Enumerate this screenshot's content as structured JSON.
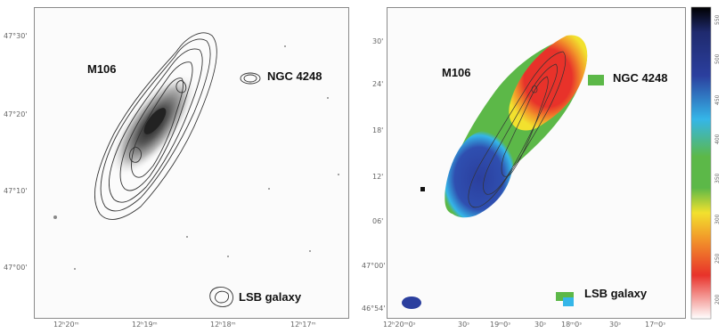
{
  "left_panel": {
    "labels": {
      "m106": "M106",
      "ngc": "NGC 4248",
      "lsb": "LSB galaxy"
    },
    "y_ticks": [
      "47°30'",
      "47°20'",
      "47°10'",
      "47°00'"
    ],
    "x_ticks": [
      "12ʰ20ᵐ",
      "12ʰ19ᵐ",
      "12ʰ18ᵐ",
      "12ʰ17ᵐ"
    ]
  },
  "right_panel": {
    "labels": {
      "m106": "M106",
      "ngc": "NGC 4248",
      "lsb": "LSB galaxy"
    },
    "y_ticks": [
      "30'",
      "24'",
      "18'",
      "12'",
      "06'",
      "47°00'",
      "46°54'"
    ],
    "x_ticks": [
      "12ʰ20ᵐ0ˢ",
      "30ˢ",
      "19ᵐ0ˢ",
      "30ˢ",
      "18ᵐ0ˢ",
      "30ˢ",
      "17ᵐ0ˢ"
    ]
  },
  "colorbar": {
    "labels": [
      "550",
      "500",
      "450",
      "400",
      "350",
      "300",
      "250",
      "200"
    ]
  },
  "colors": {
    "blue": "#2b3f9e",
    "cyan": "#35b6e8",
    "green": "#5cb848",
    "yellow": "#f2e12e",
    "orange": "#f29a2a",
    "red": "#e8322a"
  }
}
